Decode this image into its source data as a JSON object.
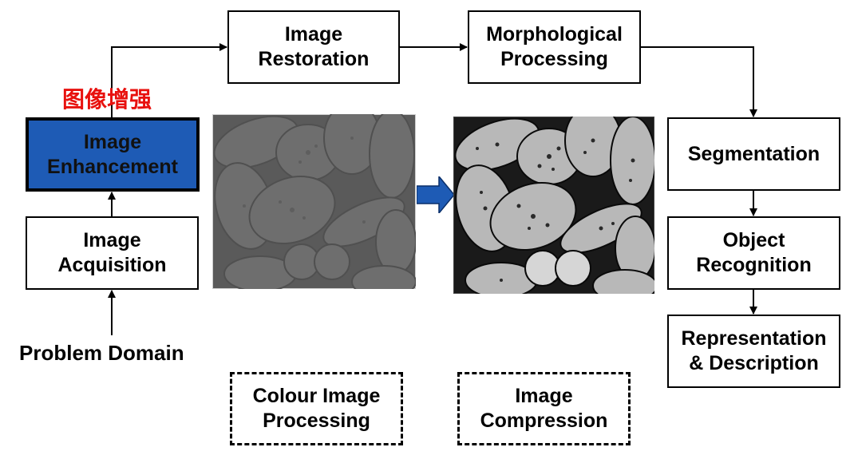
{
  "boxes": {
    "image_restoration": "Image\nRestoration",
    "morphological_processing": "Morphological\nProcessing",
    "segmentation": "Segmentation",
    "object_recognition": "Object\nRecognition",
    "representation_description": "Representation\n& Description",
    "image_enhancement": "Image\nEnhancement",
    "image_acquisition": "Image\nAcquisition",
    "colour_image_processing": "Colour Image\nProcessing",
    "image_compression": "Image\nCompression"
  },
  "problem_domain": "Problem Domain",
  "enhancement_cn": "图像增强",
  "colors": {
    "highlight": "#1e5bb5",
    "chinese_label": "#e8110e",
    "arrow_fill": "#1e5bb5"
  },
  "images": {
    "before": "low-contrast pollen grains micrograph",
    "after": "contrast-enhanced pollen grains micrograph"
  }
}
